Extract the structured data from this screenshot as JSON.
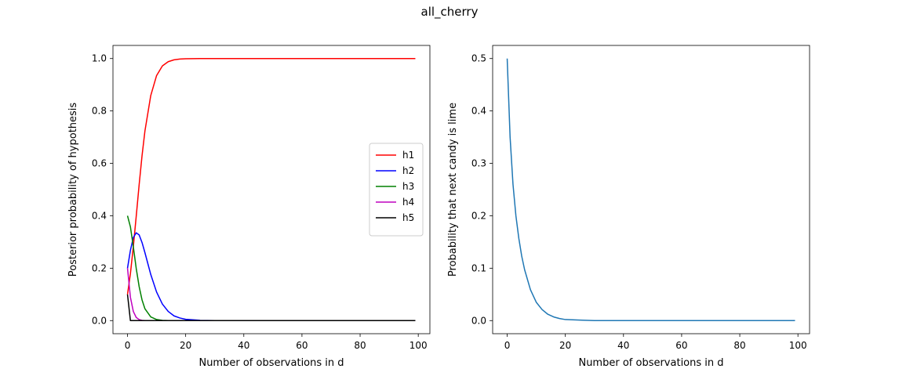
{
  "figure": {
    "title": "all_cherry"
  },
  "chart_data": [
    {
      "type": "line",
      "title": "",
      "xlabel": "Number of observations in d",
      "ylabel": "Posterior probability of hypothesis",
      "xlim": [
        -5,
        104
      ],
      "ylim": [
        -0.05,
        1.05
      ],
      "xticks": [
        0,
        20,
        40,
        60,
        80,
        100
      ],
      "yticks": [
        0.0,
        0.2,
        0.4,
        0.6,
        0.8,
        1.0
      ],
      "ytick_labels": [
        "0.0",
        "0.2",
        "0.4",
        "0.6",
        "0.8",
        "1.0"
      ],
      "grid": false,
      "legend": "center-right",
      "x": [
        0,
        1,
        2,
        3,
        4,
        5,
        6,
        8,
        10,
        12,
        14,
        16,
        18,
        20,
        25,
        30,
        40,
        60,
        80,
        99
      ],
      "series": [
        {
          "name": "h1",
          "color": "#ff0000",
          "values": [
            0.1,
            0.179,
            0.282,
            0.398,
            0.518,
            0.629,
            0.724,
            0.859,
            0.935,
            0.972,
            0.988,
            0.995,
            0.998,
            0.999,
            1.0,
            1.0,
            1.0,
            1.0,
            1.0,
            1.0
          ]
        },
        {
          "name": "h2",
          "color": "#0000ff",
          "values": [
            0.2,
            0.268,
            0.317,
            0.335,
            0.327,
            0.298,
            0.259,
            0.176,
            0.109,
            0.063,
            0.035,
            0.018,
            0.01,
            0.005,
            0.001,
            0.0,
            0.0,
            0.0,
            0.0,
            0.0
          ]
        },
        {
          "name": "h3",
          "color": "#008000",
          "values": [
            0.4,
            0.358,
            0.282,
            0.199,
            0.13,
            0.079,
            0.045,
            0.014,
            0.004,
            0.001,
            0.0,
            0.0,
            0.0,
            0.0,
            0.0,
            0.0,
            0.0,
            0.0,
            0.0,
            0.0
          ]
        },
        {
          "name": "h4",
          "color": "#bf00bf",
          "values": [
            0.2,
            0.089,
            0.035,
            0.012,
            0.004,
            0.001,
            0.0,
            0.0,
            0.0,
            0.0,
            0.0,
            0.0,
            0.0,
            0.0,
            0.0,
            0.0,
            0.0,
            0.0,
            0.0,
            0.0
          ]
        },
        {
          "name": "h5",
          "color": "#000000",
          "values": [
            0.1,
            0.0,
            0.0,
            0.0,
            0.0,
            0.0,
            0.0,
            0.0,
            0.0,
            0.0,
            0.0,
            0.0,
            0.0,
            0.0,
            0.0,
            0.0,
            0.0,
            0.0,
            0.0,
            0.0
          ]
        }
      ]
    },
    {
      "type": "line",
      "title": "",
      "xlabel": "Number of observations in d",
      "ylabel": "Probability that next candy is lime",
      "xlim": [
        -5,
        104
      ],
      "ylim": [
        -0.025,
        0.525
      ],
      "xticks": [
        0,
        20,
        40,
        60,
        80,
        100
      ],
      "yticks": [
        0.0,
        0.1,
        0.2,
        0.3,
        0.4,
        0.5
      ],
      "ytick_labels": [
        "0.0",
        "0.1",
        "0.2",
        "0.3",
        "0.4",
        "0.5"
      ],
      "grid": false,
      "x": [
        0,
        1,
        2,
        3,
        4,
        5,
        6,
        8,
        10,
        12,
        14,
        16,
        18,
        20,
        25,
        30,
        40,
        60,
        80,
        99
      ],
      "series": [
        {
          "color": "#1f77b4",
          "values": [
            0.5,
            0.35,
            0.26,
            0.2,
            0.157,
            0.123,
            0.097,
            0.059,
            0.035,
            0.021,
            0.012,
            0.007,
            0.004,
            0.002,
            0.001,
            0.0,
            0.0,
            0.0,
            0.0,
            0.0
          ]
        }
      ]
    }
  ]
}
